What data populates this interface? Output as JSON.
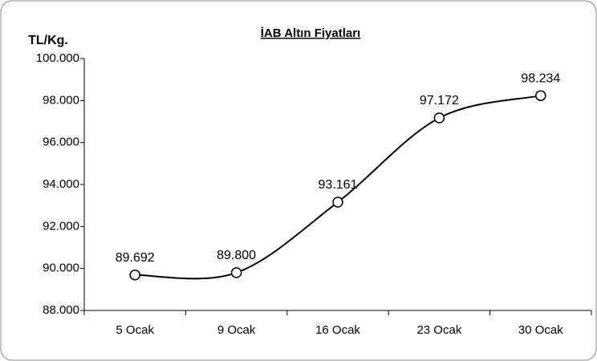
{
  "chart_data": {
    "type": "line",
    "title": "İAB Altın Fiyatları",
    "y_label": "TL/Kg.",
    "categories": [
      "5 Ocak",
      "9 Ocak",
      "16 Ocak",
      "23 Ocak",
      "30 Ocak"
    ],
    "series": [
      {
        "name": "İAB Altın Fiyatları",
        "color": "#000000",
        "values": [
          89692,
          89800,
          93161,
          97172,
          98234
        ],
        "value_labels": [
          "89.692",
          "89.800",
          "93.161",
          "97.172",
          "98.234"
        ]
      }
    ],
    "ylim": [
      88000,
      100000
    ],
    "yticks": [
      {
        "value": 88000,
        "label": "88.000"
      },
      {
        "value": 90000,
        "label": "90.000"
      },
      {
        "value": 92000,
        "label": "92.000"
      },
      {
        "value": 94000,
        "label": "94.000"
      },
      {
        "value": 96000,
        "label": "96.000"
      },
      {
        "value": 98000,
        "label": "98.000"
      },
      {
        "value": 100000,
        "label": "100.000"
      }
    ],
    "grid": false,
    "smooth": true
  }
}
